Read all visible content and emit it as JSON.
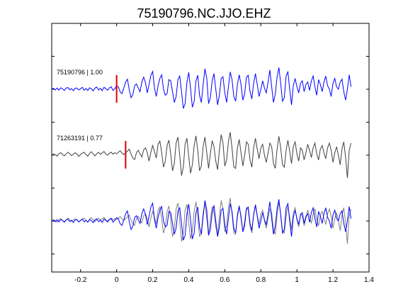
{
  "chart_data": {
    "type": "line",
    "title": "75190796.NC.JJO.EHZ",
    "xlabel": "",
    "ylabel": "",
    "xlim": [
      -0.36,
      1.4
    ],
    "x_ticks": [
      -0.2,
      0,
      0.2,
      0.4,
      0.6,
      0.8,
      1,
      1.2,
      1.4
    ],
    "x_tick_labels": [
      "-0.2",
      "0",
      "0.2",
      "0.4",
      "0.6",
      "0.8",
      "1",
      "1.2",
      "1.4"
    ],
    "grid": false,
    "sample_interval": 0.01,
    "traces": [
      {
        "label": "75190796 | 1.00",
        "color": "#0000ff",
        "pick_time": 0.0,
        "pick_color": "#dd0000",
        "start_time": -0.36,
        "values": [
          0.0,
          0.04,
          -0.03,
          0.05,
          -0.04,
          0.06,
          0.02,
          -0.05,
          0.05,
          0.07,
          -0.02,
          0.03,
          -0.06,
          0.04,
          0.05,
          -0.03,
          0.02,
          0.08,
          -0.04,
          0.03,
          -0.05,
          0.06,
          0.02,
          -0.07,
          0.05,
          0.09,
          -0.03,
          0.04,
          -0.06,
          0.08,
          0.03,
          -0.04,
          0.06,
          0.1,
          -0.05,
          0.02,
          0.14,
          0.09,
          -0.12,
          -0.18,
          0.05,
          0.3,
          0.42,
          -0.02,
          -0.35,
          -0.22,
          0.15,
          0.22,
          0.05,
          -0.1,
          0.3,
          0.5,
          0.28,
          -0.15,
          0.2,
          0.58,
          0.74,
          0.05,
          -0.3,
          0.15,
          0.45,
          0.6,
          0.0,
          -0.25,
          -0.18,
          0.4,
          0.35,
          -0.1,
          -0.55,
          -0.3,
          0.4,
          0.55,
          -0.1,
          -0.8,
          -0.6,
          0.3,
          0.7,
          0.05,
          -0.75,
          -0.5,
          0.35,
          0.58,
          -0.25,
          -0.55,
          0.2,
          0.85,
          0.45,
          -0.6,
          -0.35,
          0.35,
          0.65,
          0.0,
          -0.65,
          -0.25,
          0.45,
          0.52,
          -0.15,
          -0.55,
          0.1,
          0.72,
          0.4,
          -0.3,
          -0.5,
          0.2,
          0.6,
          0.2,
          -0.45,
          -0.2,
          0.5,
          0.58,
          -0.1,
          -0.4,
          0.25,
          0.65,
          0.2,
          -0.3,
          0.0,
          0.35,
          0.05,
          -0.15,
          0.3,
          0.8,
          0.1,
          -0.55,
          -0.2,
          0.5,
          0.9,
          0.25,
          -0.5,
          -0.35,
          0.55,
          0.72,
          0.0,
          -0.65,
          0.15,
          0.45,
          0.1,
          -0.15,
          0.25,
          0.35,
          -0.1,
          0.2,
          0.3,
          -0.05,
          0.35,
          0.55,
          0.1,
          -0.25,
          0.4,
          0.2,
          -0.1,
          0.3,
          0.55,
          0.15,
          0.0,
          -0.3,
          0.25,
          0.45,
          0.1,
          0.0,
          0.3,
          0.42,
          -0.1,
          -0.45,
          0.0,
          0.6,
          0.1
        ]
      },
      {
        "label": "71263191 | 0.77",
        "color": "#404040",
        "pick_time": 0.05,
        "pick_color": "#dd0000",
        "start_time": -0.36,
        "values": [
          0.0,
          0.05,
          0.02,
          -0.04,
          0.06,
          0.1,
          0.03,
          -0.03,
          0.05,
          0.12,
          0.06,
          -0.02,
          0.04,
          0.1,
          0.05,
          -0.05,
          0.03,
          0.08,
          0.12,
          0.02,
          -0.04,
          0.07,
          0.14,
          0.05,
          -0.03,
          0.06,
          0.12,
          0.03,
          0.09,
          0.15,
          0.05,
          0.0,
          0.08,
          0.12,
          0.04,
          0.1,
          0.06,
          0.12,
          0.18,
          0.08,
          0.02,
          0.1,
          0.16,
          0.25,
          0.05,
          -0.12,
          -0.18,
          0.1,
          0.2,
          0.05,
          -0.08,
          0.22,
          0.3,
          0.1,
          -0.25,
          0.12,
          0.4,
          0.15,
          -0.12,
          0.45,
          0.58,
          0.1,
          -0.5,
          -0.25,
          0.4,
          0.62,
          0.05,
          -0.65,
          -0.35,
          0.5,
          0.75,
          0.0,
          -0.85,
          -0.5,
          0.45,
          0.7,
          -0.05,
          -0.75,
          -0.4,
          0.4,
          0.8,
          0.2,
          -0.65,
          -0.45,
          0.35,
          0.75,
          0.1,
          -0.55,
          0.05,
          0.6,
          0.35,
          -0.25,
          -0.6,
          0.2,
          0.85,
          0.5,
          -0.45,
          -0.2,
          0.55,
          0.95,
          0.3,
          -0.5,
          -0.55,
          0.3,
          0.65,
          0.1,
          -0.45,
          0.0,
          0.55,
          0.45,
          -0.2,
          -0.5,
          0.3,
          0.7,
          0.25,
          -0.15,
          0.3,
          0.45,
          0.0,
          -0.3,
          0.1,
          0.5,
          0.35,
          -0.35,
          -0.55,
          0.25,
          0.78,
          0.3,
          -0.4,
          -0.5,
          0.2,
          0.62,
          0.15,
          -0.35,
          0.35,
          0.55,
          0.05,
          -0.25,
          0.3,
          0.2,
          -0.2,
          0.1,
          0.45,
          0.2,
          -0.1,
          0.3,
          0.5,
          0.05,
          -0.2,
          0.25,
          0.4,
          0.1,
          -0.15,
          0.3,
          0.5,
          0.2,
          -0.3,
          0.1,
          0.35,
          0.0,
          -0.4,
          0.25,
          0.55,
          -0.1,
          -0.95,
          0.2,
          0.5
        ]
      }
    ]
  }
}
